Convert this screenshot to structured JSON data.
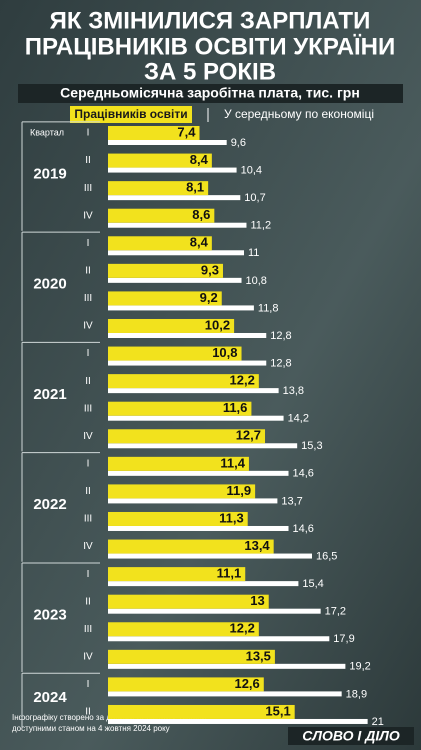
{
  "chart_data": {
    "type": "bar",
    "orientation": "horizontal",
    "title": [
      "ЯК ЗМІНИЛИСЯ ЗАРПЛАТИ",
      "ПРАЦІВНИКІВ ОСВІТИ УКРАЇНИ",
      "ЗА 5 РОКІВ"
    ],
    "subtitle": "Середньомісячна заробітна плата, тис. грн",
    "category_axis_label": "Квартал",
    "groups": [
      {
        "year": "2019",
        "quarters": [
          "I",
          "II",
          "III",
          "IV"
        ]
      },
      {
        "year": "2020",
        "quarters": [
          "I",
          "II",
          "III",
          "IV"
        ]
      },
      {
        "year": "2021",
        "quarters": [
          "I",
          "II",
          "III",
          "IV"
        ]
      },
      {
        "year": "2022",
        "quarters": [
          "I",
          "II",
          "III",
          "IV"
        ]
      },
      {
        "year": "2023",
        "quarters": [
          "I",
          "II",
          "III",
          "IV"
        ]
      },
      {
        "year": "2024",
        "quarters": [
          "I",
          "II"
        ]
      }
    ],
    "series": [
      {
        "name": "Працівників освіти",
        "color": "#f2e21d",
        "values": [
          7.4,
          8.4,
          8.1,
          8.6,
          8.4,
          9.3,
          9.2,
          10.2,
          10.8,
          12.2,
          11.6,
          12.7,
          11.4,
          11.9,
          11.3,
          13.4,
          11.1,
          13,
          12.2,
          13.5,
          12.6,
          15.1
        ],
        "value_labels": [
          "7,4",
          "8,4",
          "8,1",
          "8,6",
          "8,4",
          "9,3",
          "9,2",
          "10,2",
          "10,8",
          "12,2",
          "11,6",
          "12,7",
          "11,4",
          "11,9",
          "11,3",
          "13,4",
          "11,1",
          "13",
          "12,2",
          "13,5",
          "12,6",
          "15,1"
        ]
      },
      {
        "name": "У середньому по економіці",
        "color": "#ffffff",
        "values": [
          9.6,
          10.4,
          10.7,
          11.2,
          11,
          10.8,
          11.8,
          12.8,
          12.8,
          13.8,
          14.2,
          15.3,
          14.6,
          13.7,
          14.6,
          16.5,
          15.4,
          17.2,
          17.9,
          19.2,
          18.9,
          21
        ],
        "value_labels": [
          "9,6",
          "10,4",
          "10,7",
          "11,2",
          "11",
          "10,8",
          "11,8",
          "12,8",
          "12,8",
          "13,8",
          "14,2",
          "15,3",
          "14,6",
          "13,7",
          "14,6",
          "16,5",
          "15,4",
          "17,2",
          "17,9",
          "19,2",
          "18,9",
          "21"
        ]
      }
    ],
    "xlim": [
      0,
      22
    ],
    "source": [
      "Інфографіку створено за даними Держстату України,",
      "доступними станом на 4 жовтня 2024 року"
    ],
    "logo": "СЛОВО І ДІЛО"
  }
}
